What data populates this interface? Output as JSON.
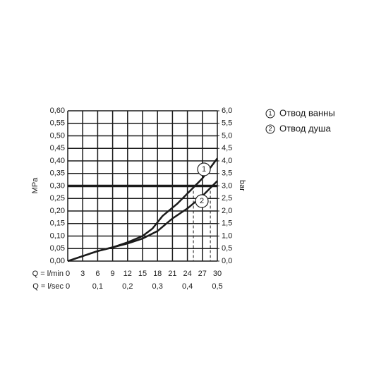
{
  "chart_data": {
    "type": "line",
    "xlabel": "Q = l/min",
    "x2label": "Q = l/sec",
    "ylabel": "MPa",
    "y2label": "bar",
    "xlim": [
      0,
      30
    ],
    "xticks": [
      0,
      3,
      6,
      9,
      12,
      15,
      18,
      21,
      24,
      27,
      30
    ],
    "x2lim": [
      0,
      0.5
    ],
    "x2ticks": [
      0,
      {
        "value": 0.1,
        "label": "0,1"
      },
      {
        "value": 0.2,
        "label": "0,2"
      },
      {
        "value": 0.3,
        "label": "0,3"
      },
      {
        "value": 0.4,
        "label": "0,4"
      },
      {
        "value": 0.5,
        "label": "0,5"
      }
    ],
    "ylim": [
      0,
      0.6
    ],
    "yticks": [
      {
        "value": 0,
        "label": "0,00"
      },
      {
        "value": 0.05,
        "label": "0,05"
      },
      {
        "value": 0.1,
        "label": "0,10"
      },
      {
        "value": 0.15,
        "label": "0,15"
      },
      {
        "value": 0.2,
        "label": "0,20"
      },
      {
        "value": 0.25,
        "label": "0,25"
      },
      {
        "value": 0.3,
        "label": "0,30"
      },
      {
        "value": 0.35,
        "label": "0,35"
      },
      {
        "value": 0.4,
        "label": "0,40"
      },
      {
        "value": 0.45,
        "label": "0,45"
      },
      {
        "value": 0.5,
        "label": "0,50"
      },
      {
        "value": 0.55,
        "label": "0,55"
      },
      {
        "value": 0.6,
        "label": "0,60"
      }
    ],
    "y2lim": [
      0,
      6
    ],
    "y2ticks": [
      {
        "value": 0,
        "label": "0,0"
      },
      {
        "value": 0.5,
        "label": "0,5"
      },
      {
        "value": 1,
        "label": "1,0"
      },
      {
        "value": 1.5,
        "label": "1,5"
      },
      {
        "value": 2,
        "label": "2,0"
      },
      {
        "value": 2.5,
        "label": "2,5"
      },
      {
        "value": 3,
        "label": "3,0"
      },
      {
        "value": 3.5,
        "label": "3,5"
      },
      {
        "value": 4,
        "label": "4,0"
      },
      {
        "value": 4.5,
        "label": "4,5"
      },
      {
        "value": 5,
        "label": "5,0"
      },
      {
        "value": 5.5,
        "label": "5,5"
      },
      {
        "value": 6,
        "label": "6,0"
      }
    ],
    "grid": true,
    "reference": {
      "y": 0.3,
      "x": [
        25.2,
        28.6
      ]
    },
    "series": [
      {
        "name": "Отвод ванны",
        "label": "1",
        "color": "#1a1a1a",
        "x": [
          0,
          6,
          9,
          12,
          15,
          17,
          19,
          22,
          25,
          27,
          30
        ],
        "values": [
          0,
          0.04,
          0.055,
          0.075,
          0.1,
          0.13,
          0.18,
          0.23,
          0.29,
          0.33,
          0.41
        ]
      },
      {
        "name": "Отвод душа",
        "label": "2",
        "color": "#1a1a1a",
        "x": [
          0,
          6,
          9,
          12,
          15,
          18,
          21,
          24,
          27,
          30
        ],
        "values": [
          0,
          0.04,
          0.055,
          0.07,
          0.09,
          0.12,
          0.17,
          0.21,
          0.26,
          0.32
        ]
      }
    ]
  }
}
